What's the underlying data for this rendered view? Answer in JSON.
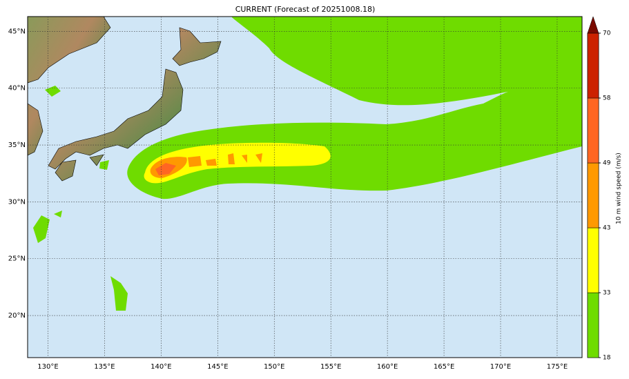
{
  "title": "CURRENT (Forecast of 20251008.18)",
  "map": {
    "lon_range": [
      128.2,
      177.2
    ],
    "lat_range": [
      16.3,
      46.3
    ],
    "lon_ticks": [
      {
        "value": 130,
        "label": "130°E"
      },
      {
        "value": 135,
        "label": "135°E"
      },
      {
        "value": 140,
        "label": "140°E"
      },
      {
        "value": 145,
        "label": "145°E"
      },
      {
        "value": 150,
        "label": "150°E"
      },
      {
        "value": 155,
        "label": "155°E"
      },
      {
        "value": 160,
        "label": "160°E"
      },
      {
        "value": 165,
        "label": "165°E"
      },
      {
        "value": 170,
        "label": "170°E"
      },
      {
        "value": 175,
        "label": "175°E"
      }
    ],
    "lat_ticks": [
      {
        "value": 20,
        "label": "20°N"
      },
      {
        "value": 25,
        "label": "25°N"
      },
      {
        "value": 30,
        "label": "30°N"
      },
      {
        "value": 35,
        "label": "35°N"
      },
      {
        "value": 40,
        "label": "40°N"
      },
      {
        "value": 45,
        "label": "45°N"
      }
    ]
  },
  "colorbar": {
    "label": "10 m wind speed (m/s)",
    "levels": [
      18,
      33,
      43,
      49,
      58,
      70
    ],
    "colors": [
      "#6fdc00",
      "#ffff00",
      "#ff9900",
      "#ff6622",
      "#cc2200"
    ],
    "extend_color": "#7a0a00"
  }
}
